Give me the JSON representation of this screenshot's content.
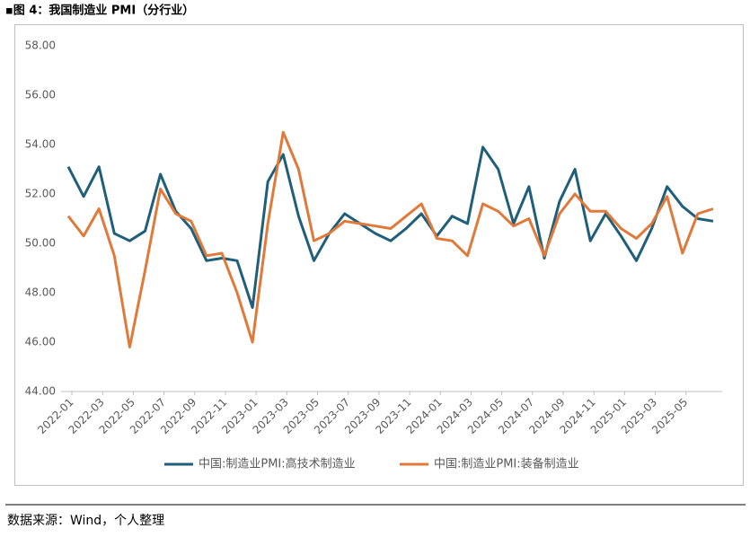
{
  "header": {
    "title": "▪图 4：我国制造业 PMI（分行业）"
  },
  "chart_data": {
    "type": "line",
    "categories": [
      "2022-01",
      null,
      "2022-03",
      null,
      "2022-05",
      null,
      "2022-07",
      null,
      "2022-09",
      null,
      "2022-11",
      null,
      "2023-01",
      null,
      "2023-03",
      null,
      "2023-05",
      null,
      "2023-07",
      null,
      "2023-09",
      null,
      "2023-11",
      null,
      "2024-01",
      null,
      "2024-03",
      null,
      "2024-05",
      null,
      "2024-07",
      null,
      "2024-09",
      null,
      "2024-11",
      null,
      "2025-01",
      null,
      "2025-03",
      null,
      "2025-05",
      null,
      null
    ],
    "series": [
      {
        "name": "中国:制造业PMI:高技术制造业",
        "color": "#1f5f7a",
        "values": [
          53.1,
          51.9,
          53.1,
          50.4,
          50.1,
          50.5,
          52.8,
          51.3,
          50.6,
          49.3,
          49.4,
          49.3,
          47.4,
          52.5,
          53.6,
          51.1,
          49.3,
          50.4,
          51.2,
          50.8,
          50.4,
          50.1,
          50.6,
          51.2,
          50.3,
          51.1,
          50.8,
          53.9,
          53.0,
          50.8,
          52.3,
          49.4,
          51.7,
          53.0,
          50.1,
          51.2,
          50.3,
          49.3,
          50.6,
          52.3,
          51.5,
          51.0,
          50.9
        ]
      },
      {
        "name": "中国:制造业PMI:装备制造业",
        "color": "#e07a3a",
        "values": [
          51.1,
          50.3,
          51.4,
          49.5,
          45.8,
          48.9,
          52.2,
          51.2,
          50.9,
          49.5,
          49.6,
          48.0,
          46.0,
          50.8,
          54.5,
          53.0,
          50.1,
          50.4,
          50.9,
          50.8,
          50.7,
          50.6,
          51.1,
          51.6,
          50.2,
          50.1,
          49.5,
          51.6,
          51.3,
          50.7,
          51.0,
          49.5,
          51.2,
          52.0,
          51.3,
          51.3,
          50.6,
          50.2,
          50.8,
          51.9,
          49.6,
          51.2,
          51.4
        ]
      }
    ],
    "ylim": [
      44,
      58
    ],
    "yticks": [
      {
        "value": 44,
        "label": "44.00"
      },
      {
        "value": 46,
        "label": "46.00"
      },
      {
        "value": 48,
        "label": "48.00"
      },
      {
        "value": 50,
        "label": "50.00"
      },
      {
        "value": 52,
        "label": "52.00"
      },
      {
        "value": 54,
        "label": "54.00"
      },
      {
        "value": 56,
        "label": "56.00"
      },
      {
        "value": 58,
        "label": "58.00"
      }
    ],
    "grid": false,
    "legend": "bottom"
  },
  "footer": {
    "source": "数据来源：Wind，个人整理"
  }
}
